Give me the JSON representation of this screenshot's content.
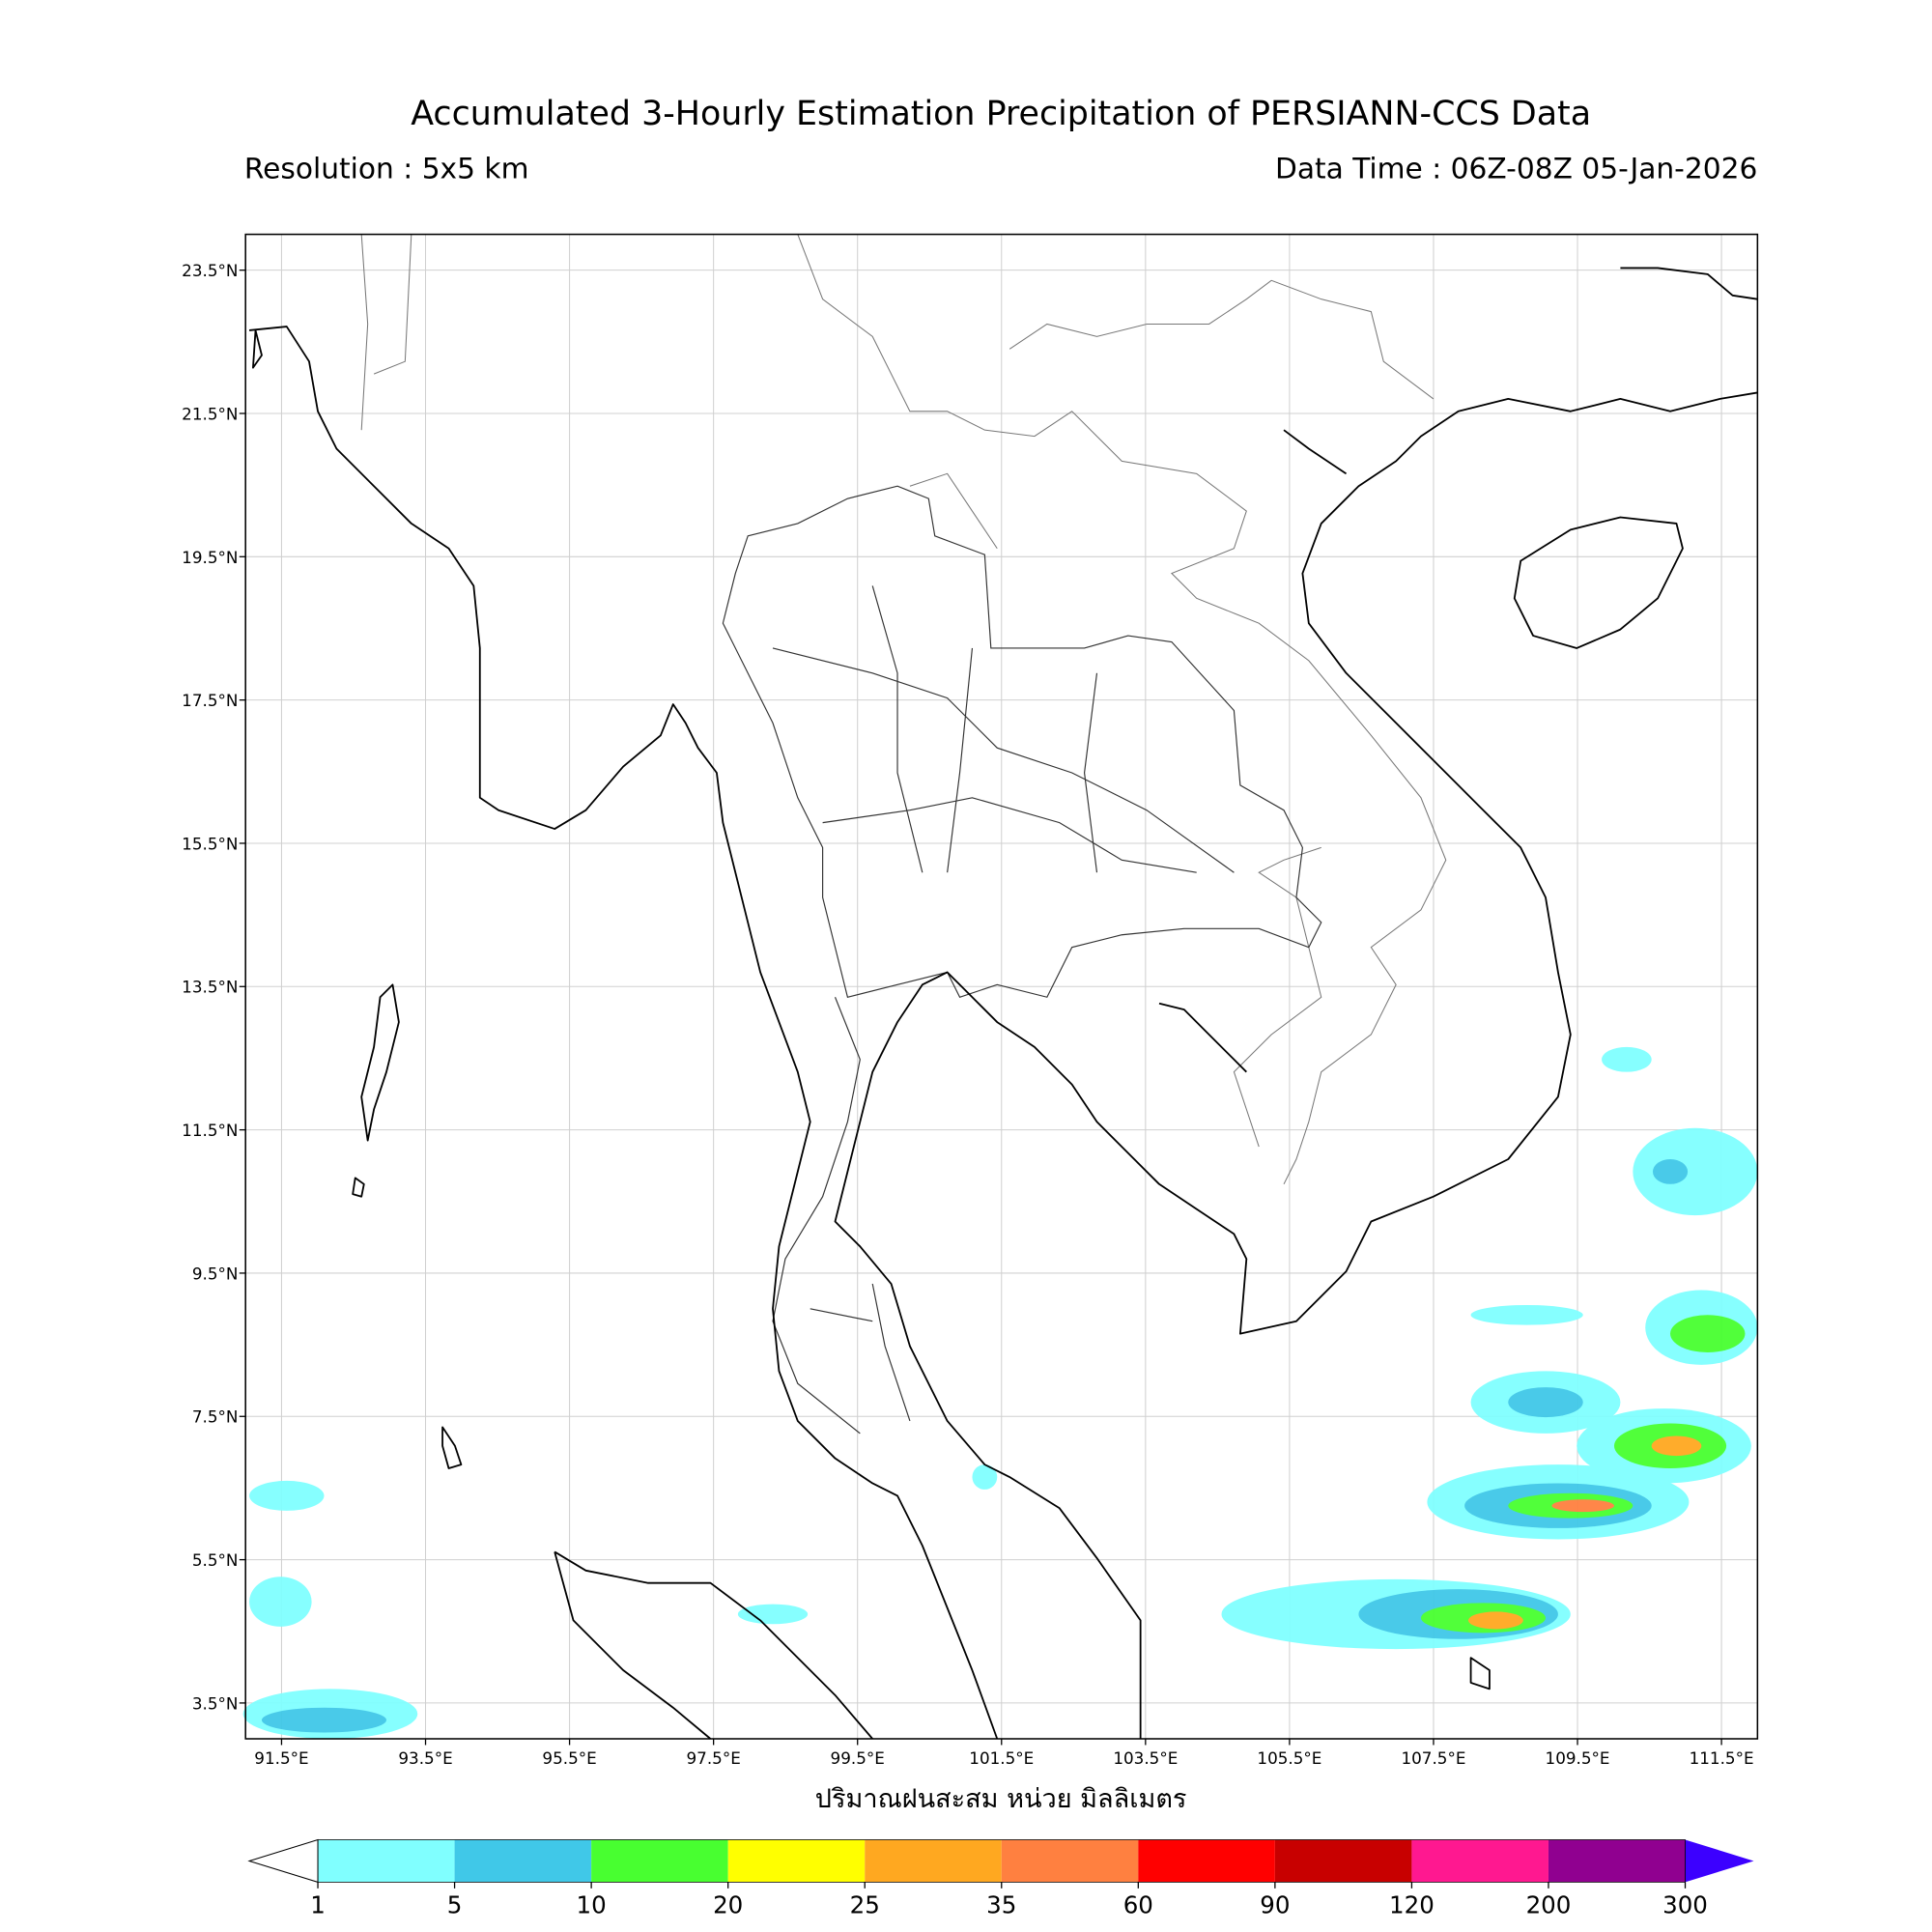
{
  "title": "Accumulated 3-Hourly Estimation Precipitation of PERSIANN-CCS Data",
  "resolution": "Resolution : 5x5 km",
  "data_time": "Data Time : 06Z-08Z 05-Jan-2026",
  "map": {
    "xlim": [
      91,
      112
    ],
    "ylim": [
      3,
      24
    ],
    "xticks": [
      {
        "value": 91.5,
        "label": "91.5°E"
      },
      {
        "value": 93.5,
        "label": "93.5°E"
      },
      {
        "value": 95.5,
        "label": "95.5°E"
      },
      {
        "value": 97.5,
        "label": "97.5°E"
      },
      {
        "value": 99.5,
        "label": "99.5°E"
      },
      {
        "value": 101.5,
        "label": "101.5°E"
      },
      {
        "value": 103.5,
        "label": "103.5°E"
      },
      {
        "value": 105.5,
        "label": "105.5°E"
      },
      {
        "value": 107.5,
        "label": "107.5°E"
      },
      {
        "value": 109.5,
        "label": "109.5°E"
      },
      {
        "value": 111.5,
        "label": "111.5°E"
      }
    ],
    "yticks": [
      {
        "value": 3.5,
        "label": "3.5°N"
      },
      {
        "value": 5.5,
        "label": "5.5°N"
      },
      {
        "value": 7.5,
        "label": "7.5°N"
      },
      {
        "value": 9.5,
        "label": "9.5°N"
      },
      {
        "value": 11.5,
        "label": "11.5°N"
      },
      {
        "value": 13.5,
        "label": "13.5°N"
      },
      {
        "value": 15.5,
        "label": "15.5°N"
      },
      {
        "value": 17.5,
        "label": "17.5°N"
      },
      {
        "value": 19.5,
        "label": "19.5°N"
      },
      {
        "value": 21.5,
        "label": "21.5°N"
      },
      {
        "value": 23.5,
        "label": "23.5°N"
      }
    ],
    "grid": true
  },
  "xlabel": "ปริมาณฝนสะสม หน่วย มิลลิเมตร",
  "colorbar": {
    "bounds": [
      1,
      5,
      10,
      20,
      25,
      35,
      60,
      90,
      120,
      200,
      300
    ],
    "colors": [
      "#80ffff",
      "#40c8e8",
      "#48ff30",
      "#ffff00",
      "#ffa820",
      "#ff8040",
      "#ff0000",
      "#c80000",
      "#ff1890",
      "#900090"
    ],
    "under_color": "#ffffff",
    "over_color": "#3c00ff"
  }
}
